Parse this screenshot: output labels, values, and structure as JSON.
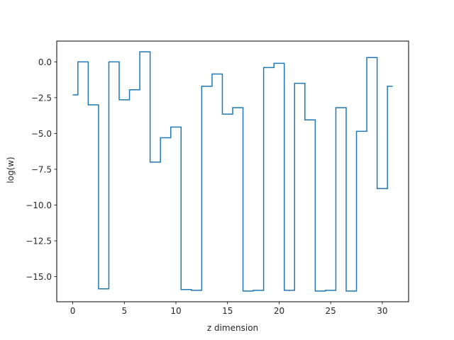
{
  "chart_data": {
    "type": "line",
    "drawstyle": "steps-mid",
    "xlabel": "z dimension",
    "ylabel": "log(w)",
    "xlim": [
      -1.55,
      32.55
    ],
    "ylim": [
      -16.75,
      1.45
    ],
    "xticks": [
      0,
      5,
      10,
      15,
      20,
      25,
      30
    ],
    "xtick_labels": [
      "0",
      "5",
      "10",
      "15",
      "20",
      "25",
      "30"
    ],
    "yticks": [
      0.0,
      -2.5,
      -5.0,
      -7.5,
      -10.0,
      -12.5,
      -15.0
    ],
    "ytick_labels": [
      "0.0",
      "−2.5",
      "−5.0",
      "−7.5",
      "−10.0",
      "−12.5",
      "−15.0"
    ],
    "grid": false,
    "series": [
      {
        "color": "#1f77b4",
        "x": [
          0,
          1,
          2,
          3,
          4,
          5,
          6,
          7,
          8,
          9,
          10,
          11,
          12,
          13,
          14,
          15,
          16,
          17,
          18,
          19,
          20,
          21,
          22,
          23,
          24,
          25,
          26,
          27,
          28,
          29,
          30,
          31
        ],
        "values": [
          -2.3,
          0.0,
          -3.0,
          -15.85,
          0.0,
          -2.65,
          -1.95,
          0.7,
          -7.0,
          -5.3,
          -4.55,
          -15.9,
          -15.95,
          -1.7,
          -0.85,
          -3.65,
          -3.2,
          -16.0,
          -15.95,
          -0.4,
          -0.1,
          -15.95,
          -1.5,
          -4.05,
          -16.0,
          -15.95,
          -3.2,
          -16.0,
          -4.85,
          0.3,
          -8.85,
          -1.7
        ]
      }
    ]
  }
}
